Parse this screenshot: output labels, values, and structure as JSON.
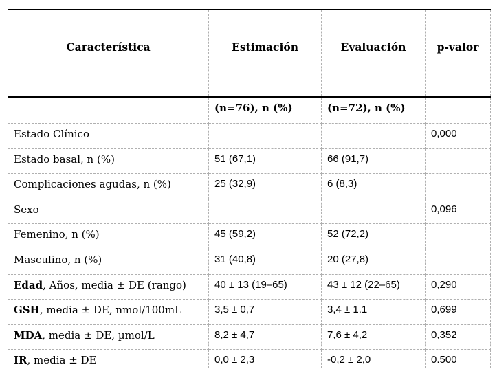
{
  "table": {
    "headers": {
      "caracteristica": "Característica",
      "estimacion": "Estimación",
      "evaluacion": "Evaluación",
      "p_valor": "p-valor"
    },
    "subheaders": {
      "estimacion_n": "(n=76), n (%)",
      "evaluacion_n": "(n=72), n (%)"
    },
    "rows": [
      {
        "label_bold": "",
        "label": "Estado Clínico",
        "estimacion": "",
        "evaluacion": "",
        "p": "0,000"
      },
      {
        "label_bold": "",
        "label": "Estado basal, n (%)",
        "estimacion": "51 (67,1)",
        "evaluacion": "66 (91,7)",
        "p": ""
      },
      {
        "label_bold": "",
        "label": "Complicaciones agudas, n (%)",
        "estimacion": "25 (32,9)",
        "evaluacion": "6 (8,3)",
        "p": ""
      },
      {
        "label_bold": "",
        "label": "Sexo",
        "estimacion": "",
        "evaluacion": "",
        "p": "0,096"
      },
      {
        "label_bold": "",
        "label": "Femenino, n (%)",
        "estimacion": "45 (59,2)",
        "evaluacion": "52 (72,2)",
        "p": ""
      },
      {
        "label_bold": "",
        "label": "Masculino, n (%)",
        "estimacion": "31 (40,8)",
        "evaluacion": "20 (27,8)",
        "p": ""
      },
      {
        "label_bold": "Edad",
        "label": ", Años, media ± DE (rango)",
        "estimacion": "40 ± 13 (19–65)",
        "evaluacion": "43 ± 12 (22–65)",
        "p": "0,290"
      },
      {
        "label_bold": "GSH",
        "label": ", media ± DE, nmol/100mL",
        "estimacion": "3,5 ± 0,7",
        "evaluacion": "3,4 ± 1.1",
        "p": "0,699"
      },
      {
        "label_bold": "MDA",
        "label": ", media ± DE, µmol/L",
        "estimacion": "8,2 ± 4,7",
        "evaluacion": "7,6 ± 4,2",
        "p": "0,352"
      },
      {
        "label_bold": "IR",
        "label": ", media ± DE",
        "estimacion": "0,0 ± 2,3",
        "evaluacion": "-0,2 ± 2,0",
        "p": "0.500"
      }
    ]
  }
}
